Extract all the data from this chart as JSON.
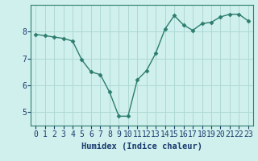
{
  "x": [
    0,
    1,
    2,
    3,
    4,
    5,
    6,
    7,
    8,
    9,
    10,
    11,
    12,
    13,
    14,
    15,
    16,
    17,
    18,
    19,
    20,
    21,
    22,
    23
  ],
  "y": [
    7.9,
    7.85,
    7.8,
    7.75,
    7.65,
    6.95,
    6.5,
    6.4,
    5.75,
    4.85,
    4.85,
    6.2,
    6.55,
    7.2,
    8.1,
    8.6,
    8.25,
    8.05,
    8.3,
    8.35,
    8.55,
    8.65,
    8.65,
    8.4
  ],
  "line_color": "#2d7d6e",
  "marker": "D",
  "marker_size": 2.5,
  "background_color": "#cff0ec",
  "grid_color": "#aed9d4",
  "axis_bg": "#cff0ec",
  "xlabel": "Humidex (Indice chaleur)",
  "xlabel_fontsize": 7.5,
  "tick_fontsize": 7,
  "ylim": [
    4.5,
    9.0
  ],
  "yticks": [
    5,
    6,
    7,
    8
  ],
  "xticks": [
    0,
    1,
    2,
    3,
    4,
    5,
    6,
    7,
    8,
    9,
    10,
    11,
    12,
    13,
    14,
    15,
    16,
    17,
    18,
    19,
    20,
    21,
    22,
    23
  ],
  "line_width": 1.0,
  "spine_color": "#2d7d6e"
}
